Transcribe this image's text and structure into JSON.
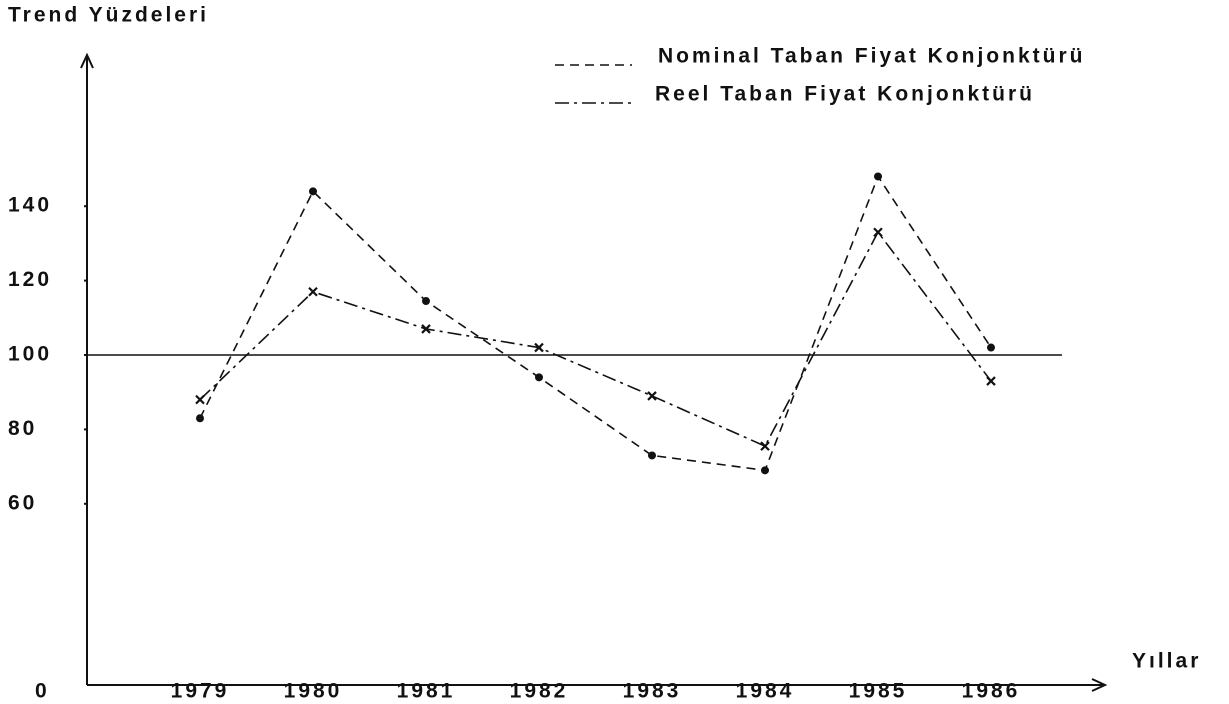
{
  "chart_data": {
    "type": "line",
    "y_label": "Trend Yüzdeleri",
    "x_label": "Yıllar",
    "origin_label": "0",
    "categories": [
      "1979",
      "1980",
      "1981",
      "1982",
      "1983",
      "1984",
      "1985",
      "1986"
    ],
    "series": [
      {
        "name": "Nominal Taban Fiyat Konjonktürü",
        "color": "#111",
        "dash": "dashed",
        "marker": "dot",
        "values": [
          83,
          144,
          114.5,
          94,
          73,
          69,
          148,
          102
        ]
      },
      {
        "name": "Reel Taban Fiyat Konjonktürü",
        "color": "#111",
        "dash": "dashdot",
        "marker": "cross",
        "values": [
          88,
          117,
          107,
          102,
          89,
          75.5,
          133,
          93
        ]
      }
    ],
    "ylim": [
      40,
      160
    ],
    "yticks": [
      60,
      80,
      100,
      120,
      140
    ],
    "reference_line": 100
  }
}
